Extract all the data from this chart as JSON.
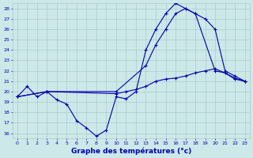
{
  "xlabel": "Graphe des températures (°c)",
  "bg_color": "#cce8e8",
  "grid_color": "#aacccc",
  "line_color": "#0000aa",
  "xlim": [
    -0.5,
    23.5
  ],
  "ylim": [
    15.5,
    28.5
  ],
  "yticks": [
    16,
    17,
    18,
    19,
    20,
    21,
    22,
    23,
    24,
    25,
    26,
    27,
    28
  ],
  "xticks": [
    0,
    1,
    2,
    3,
    4,
    5,
    6,
    7,
    8,
    9,
    10,
    11,
    12,
    13,
    14,
    15,
    16,
    17,
    18,
    19,
    20,
    21,
    22,
    23
  ],
  "series": [
    {
      "x": [
        0,
        1,
        2,
        3,
        4,
        5,
        6,
        7,
        8,
        9,
        10,
        11,
        12,
        13,
        14,
        15,
        16,
        17,
        18,
        20,
        21,
        22,
        23
      ],
      "y": [
        19.5,
        20.5,
        19.5,
        20.0,
        19.2,
        18.8,
        17.2,
        16.5,
        15.7,
        16.3,
        19.5,
        19.3,
        20.0,
        24.0,
        26.0,
        27.5,
        28.5,
        28.0,
        27.5,
        22.0,
        21.8,
        21.2,
        21.0
      ]
    },
    {
      "x": [
        0,
        3,
        10,
        13,
        14,
        15,
        16,
        17,
        18,
        19,
        20,
        21,
        22,
        23
      ],
      "y": [
        19.5,
        20.0,
        20.0,
        22.5,
        24.5,
        26.0,
        27.5,
        28.0,
        27.5,
        27.0,
        26.0,
        22.0,
        21.5,
        21.0
      ]
    },
    {
      "x": [
        0,
        3,
        10,
        11,
        12,
        13,
        14,
        15,
        16,
        17,
        18,
        19,
        20,
        21,
        22,
        23
      ],
      "y": [
        19.5,
        20.0,
        19.8,
        20.0,
        20.2,
        20.5,
        21.0,
        21.2,
        21.3,
        21.5,
        21.8,
        22.0,
        22.2,
        21.8,
        21.3,
        21.0
      ]
    }
  ]
}
